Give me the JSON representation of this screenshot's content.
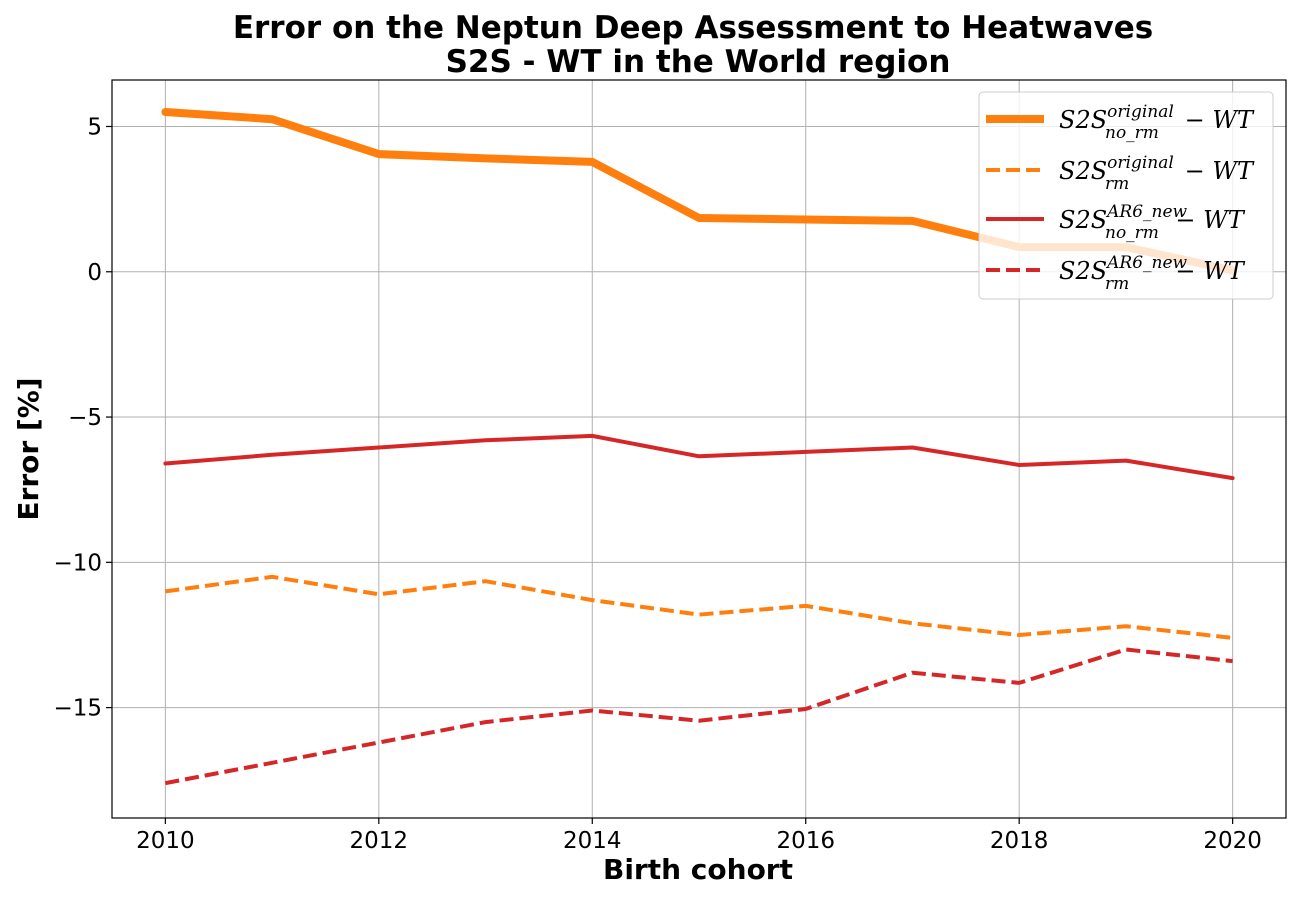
{
  "chart_data": {
    "type": "line",
    "title_line1": "Error on the Neptun Deep Assessment to Heatwaves",
    "title_line2": "S2S - WT in the World region",
    "xlabel": "Birth cohort",
    "ylabel": "Error [%]",
    "xlim": [
      2009.5,
      2020.5
    ],
    "ylim": [
      -18.8,
      6.6
    ],
    "xticks": [
      2010,
      2012,
      2014,
      2016,
      2018,
      2020
    ],
    "yticks": [
      5,
      0,
      -5,
      -10,
      -15
    ],
    "ytick_labels": [
      "5",
      "0",
      "−5",
      "−10",
      "−15"
    ],
    "grid": true,
    "legend_position": "top-right",
    "x": [
      2010,
      2011,
      2012,
      2013,
      2014,
      2015,
      2016,
      2017,
      2018,
      2019,
      2020
    ],
    "series": [
      {
        "name": "S2S_no_rm^original - WT",
        "legend_base": "S2S",
        "legend_sup": "original",
        "legend_sub": "no_rm",
        "legend_tail": "− WT",
        "color": "#ff7f0e",
        "style": "solid",
        "width": 8,
        "values": [
          5.5,
          5.25,
          4.05,
          3.9,
          3.78,
          1.85,
          1.8,
          1.75,
          0.85,
          0.85,
          0.05
        ]
      },
      {
        "name": "S2S_rm^original - WT",
        "legend_base": "S2S",
        "legend_sup": "original",
        "legend_sub": "rm",
        "legend_tail": "− WT",
        "color": "#ff7f0e",
        "style": "dashed",
        "width": 4,
        "values": [
          -11.0,
          -10.5,
          -11.1,
          -10.65,
          -11.3,
          -11.8,
          -11.5,
          -12.1,
          -12.5,
          -12.2,
          -12.6
        ]
      },
      {
        "name": "S2S_no_rm^AR6_new - WT",
        "legend_base": "S2S",
        "legend_sup": "AR6_new",
        "legend_sub": "no_rm",
        "legend_tail": "− WT",
        "color": "#d62728",
        "style": "solid",
        "width": 4,
        "values": [
          -6.6,
          -6.3,
          -6.05,
          -5.8,
          -5.65,
          -6.35,
          -6.2,
          -6.05,
          -6.65,
          -6.5,
          -7.1
        ]
      },
      {
        "name": "S2S_rm^AR6_new - WT",
        "legend_base": "S2S",
        "legend_sup": "AR6_new",
        "legend_sub": "rm",
        "legend_tail": "− WT",
        "color": "#d62728",
        "style": "dashed",
        "width": 4,
        "values": [
          -17.6,
          -16.9,
          -16.2,
          -15.5,
          -15.1,
          -15.45,
          -15.05,
          -13.8,
          -14.15,
          -13.0,
          -13.4
        ]
      }
    ]
  }
}
